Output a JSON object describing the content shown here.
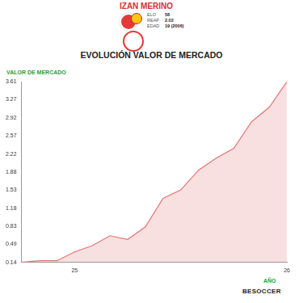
{
  "header": {
    "name": "IZAN MERINO",
    "stats": [
      {
        "label": "ELO",
        "value": 58
      },
      {
        "label": "REAP",
        "value": 2.02
      },
      {
        "label": "EDAD",
        "value": "19 (2006)"
      }
    ]
  },
  "chart_data": {
    "type": "line",
    "title": "EVOLUCIÓN VALOR DE MERCADO",
    "y_label": "VALOR DE MERCADO",
    "x_label": "AÑO",
    "annotations": [
      "BESOCCER"
    ],
    "categories": [
      null,
      null,
      null,
      "25",
      null,
      null,
      null,
      null,
      null,
      null,
      null,
      null,
      null,
      null,
      null,
      "26"
    ],
    "values": [
      0.14,
      0.17,
      0.17,
      0.34,
      0.46,
      0.65,
      0.58,
      0.82,
      1.37,
      1.53,
      1.91,
      2.14,
      2.33,
      2.84,
      3.12,
      3.61
    ],
    "color": "#e57373",
    "ylim": [
      0.14,
      3.61
    ],
    "yticks": [
      0.14,
      0.49,
      0.83,
      1.18,
      1.53,
      1.88,
      2.22,
      2.57,
      2.92,
      3.27,
      3.61
    ],
    "grid": false
  }
}
